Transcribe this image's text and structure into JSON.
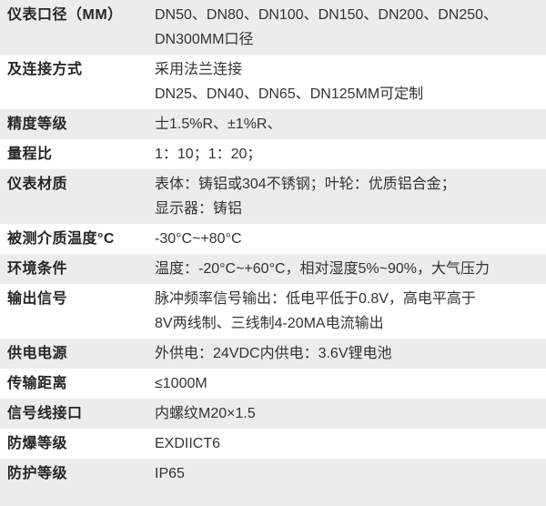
{
  "colors": {
    "row_alt_bg": "#ececec",
    "row_bg": "#ffffff",
    "label_color": "#262626",
    "value_color": "#333333"
  },
  "table": {
    "rows": [
      {
        "label": "仪表口径（MM）",
        "lines": [
          "DN50、DN80、DN100、DN150、DN200、DN250、",
          "DN300MM口径"
        ]
      },
      {
        "label": "及连接方式",
        "lines": [
          "采用法兰连接",
          "DN25、DN40、DN65、DN125MM可定制"
        ]
      },
      {
        "label": "精度等级",
        "lines": [
          "士1.5%R、±1%R、"
        ]
      },
      {
        "label": "量程比",
        "lines": [
          "1：10；1：20；"
        ]
      },
      {
        "label": "仪表材质",
        "lines": [
          "表体：铸铝或304不锈钢；叶轮：优质铝合金；",
          "显示器：铸铝"
        ]
      },
      {
        "label": "被测介质温度°C",
        "lines": [
          "-30°C~+80°C"
        ]
      },
      {
        "label": "环境条件",
        "lines": [
          "温度：-20°C~+60°C，相对湿度5%~90%，大气压力"
        ]
      },
      {
        "label": "输出信号",
        "lines": [
          "脉冲频率信号输出：低电平低于0.8V，高电平高于",
          "8V两线制、三线制4-20MA电流输出"
        ]
      },
      {
        "label": "供电电源",
        "lines": [
          "外供电：24VDC内供电：3.6V锂电池"
        ]
      },
      {
        "label": "传输距离",
        "lines": [
          "≤1000M"
        ]
      },
      {
        "label": "信号线接口",
        "lines": [
          "内螺纹M20×1.5"
        ]
      },
      {
        "label": "防爆等级",
        "lines": [
          "EXDIICT6"
        ]
      },
      {
        "label": "防护等级",
        "lines": [
          "IP65"
        ]
      }
    ]
  }
}
